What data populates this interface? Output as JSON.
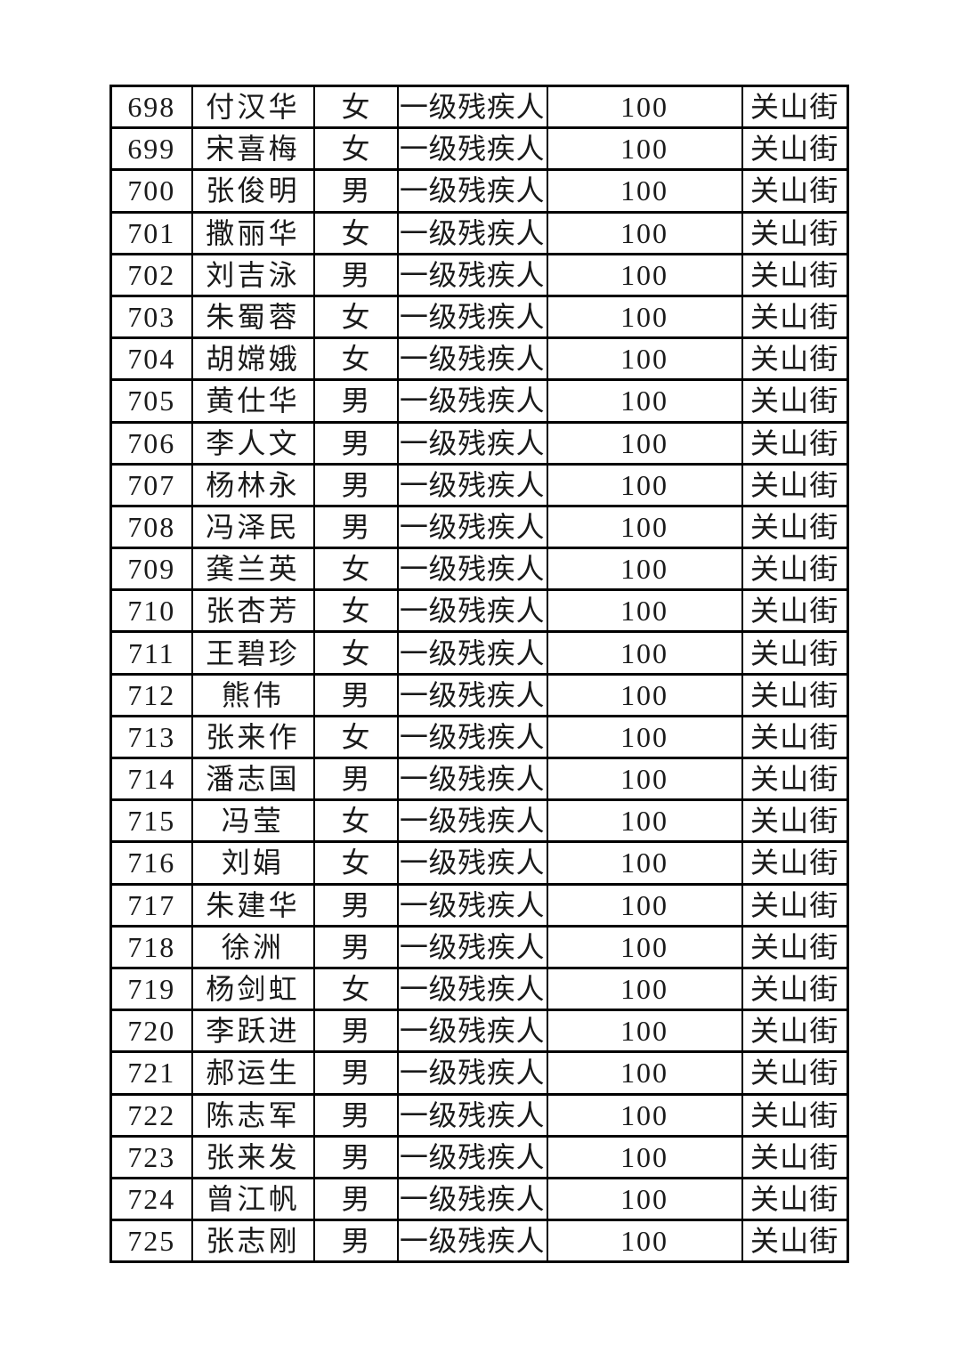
{
  "page": {
    "background_color": "#ffffff",
    "text_color": "#1a1a1a",
    "border_color": "#000000"
  },
  "table": {
    "columns": [
      {
        "key": "no",
        "name": "serial-number"
      },
      {
        "key": "name",
        "name": "person-name"
      },
      {
        "key": "gender",
        "name": "gender"
      },
      {
        "key": "category",
        "name": "category"
      },
      {
        "key": "amount",
        "name": "amount"
      },
      {
        "key": "street",
        "name": "street"
      }
    ],
    "rows": [
      {
        "no": "698",
        "name": "付汉华",
        "gender": "女",
        "category": "一级残疾人",
        "amount": "100",
        "street": "关山街"
      },
      {
        "no": "699",
        "name": "宋喜梅",
        "gender": "女",
        "category": "一级残疾人",
        "amount": "100",
        "street": "关山街"
      },
      {
        "no": "700",
        "name": "张俊明",
        "gender": "男",
        "category": "一级残疾人",
        "amount": "100",
        "street": "关山街"
      },
      {
        "no": "701",
        "name": "撒丽华",
        "gender": "女",
        "category": "一级残疾人",
        "amount": "100",
        "street": "关山街"
      },
      {
        "no": "702",
        "name": "刘吉泳",
        "gender": "男",
        "category": "一级残疾人",
        "amount": "100",
        "street": "关山街"
      },
      {
        "no": "703",
        "name": "朱蜀蓉",
        "gender": "女",
        "category": "一级残疾人",
        "amount": "100",
        "street": "关山街"
      },
      {
        "no": "704",
        "name": "胡嫦娥",
        "gender": "女",
        "category": "一级残疾人",
        "amount": "100",
        "street": "关山街"
      },
      {
        "no": "705",
        "name": "黄仕华",
        "gender": "男",
        "category": "一级残疾人",
        "amount": "100",
        "street": "关山街"
      },
      {
        "no": "706",
        "name": "李人文",
        "gender": "男",
        "category": "一级残疾人",
        "amount": "100",
        "street": "关山街"
      },
      {
        "no": "707",
        "name": "杨林永",
        "gender": "男",
        "category": "一级残疾人",
        "amount": "100",
        "street": "关山街"
      },
      {
        "no": "708",
        "name": "冯泽民",
        "gender": "男",
        "category": "一级残疾人",
        "amount": "100",
        "street": "关山街"
      },
      {
        "no": "709",
        "name": "龚兰英",
        "gender": "女",
        "category": "一级残疾人",
        "amount": "100",
        "street": "关山街"
      },
      {
        "no": "710",
        "name": "张杏芳",
        "gender": "女",
        "category": "一级残疾人",
        "amount": "100",
        "street": "关山街"
      },
      {
        "no": "711",
        "name": "王碧珍",
        "gender": "女",
        "category": "一级残疾人",
        "amount": "100",
        "street": "关山街"
      },
      {
        "no": "712",
        "name": "熊伟",
        "gender": "男",
        "category": "一级残疾人",
        "amount": "100",
        "street": "关山街"
      },
      {
        "no": "713",
        "name": "张来作",
        "gender": "女",
        "category": "一级残疾人",
        "amount": "100",
        "street": "关山街"
      },
      {
        "no": "714",
        "name": "潘志国",
        "gender": "男",
        "category": "一级残疾人",
        "amount": "100",
        "street": "关山街"
      },
      {
        "no": "715",
        "name": "冯莹",
        "gender": "女",
        "category": "一级残疾人",
        "amount": "100",
        "street": "关山街"
      },
      {
        "no": "716",
        "name": "刘娟",
        "gender": "女",
        "category": "一级残疾人",
        "amount": "100",
        "street": "关山街"
      },
      {
        "no": "717",
        "name": "朱建华",
        "gender": "男",
        "category": "一级残疾人",
        "amount": "100",
        "street": "关山街"
      },
      {
        "no": "718",
        "name": "徐洲",
        "gender": "男",
        "category": "一级残疾人",
        "amount": "100",
        "street": "关山街"
      },
      {
        "no": "719",
        "name": "杨剑虹",
        "gender": "女",
        "category": "一级残疾人",
        "amount": "100",
        "street": "关山街"
      },
      {
        "no": "720",
        "name": "李跃进",
        "gender": "男",
        "category": "一级残疾人",
        "amount": "100",
        "street": "关山街"
      },
      {
        "no": "721",
        "name": "郝运生",
        "gender": "男",
        "category": "一级残疾人",
        "amount": "100",
        "street": "关山街"
      },
      {
        "no": "722",
        "name": "陈志军",
        "gender": "男",
        "category": "一级残疾人",
        "amount": "100",
        "street": "关山街"
      },
      {
        "no": "723",
        "name": "张来发",
        "gender": "男",
        "category": "一级残疾人",
        "amount": "100",
        "street": "关山街"
      },
      {
        "no": "724",
        "name": "曾江帆",
        "gender": "男",
        "category": "一级残疾人",
        "amount": "100",
        "street": "关山街"
      },
      {
        "no": "725",
        "name": "张志刚",
        "gender": "男",
        "category": "一级残疾人",
        "amount": "100",
        "street": "关山街"
      }
    ]
  }
}
